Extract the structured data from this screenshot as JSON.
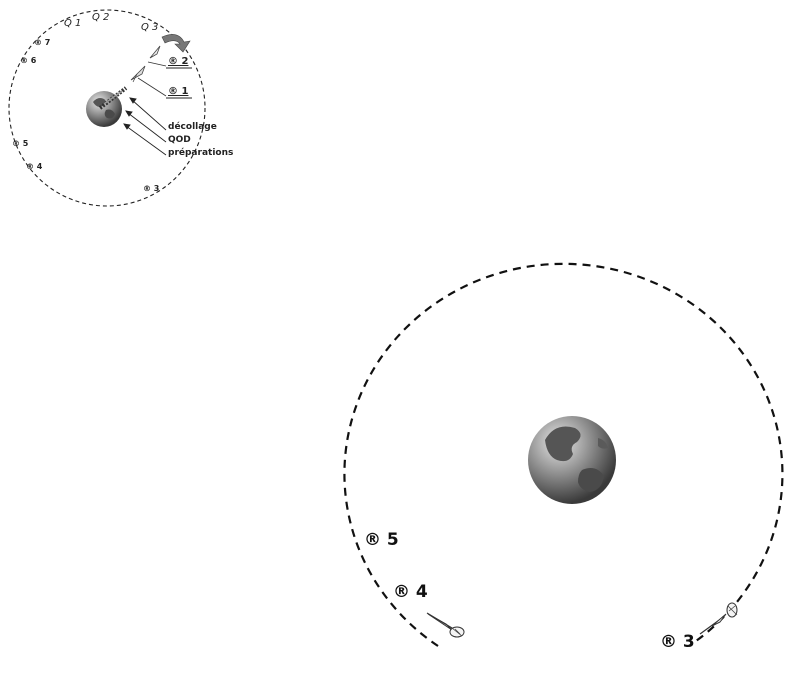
{
  "small_diagram": {
    "q_labels": [
      "Q 1",
      "Q 2",
      "Q 3"
    ],
    "ring_markers": [
      "® 7",
      "® 6",
      "® 5",
      "® 4",
      "® 3"
    ],
    "callouts": [
      "® 2",
      "® 1"
    ],
    "phases": [
      "décollage",
      "QOD",
      "préparations"
    ]
  },
  "large_diagram": {
    "markers": [
      "® 5",
      "® 4",
      "® 3"
    ]
  },
  "icons": {
    "planet": "earth-globe",
    "vehicle": "rocket-capsule",
    "direction": "curved-arrow"
  }
}
